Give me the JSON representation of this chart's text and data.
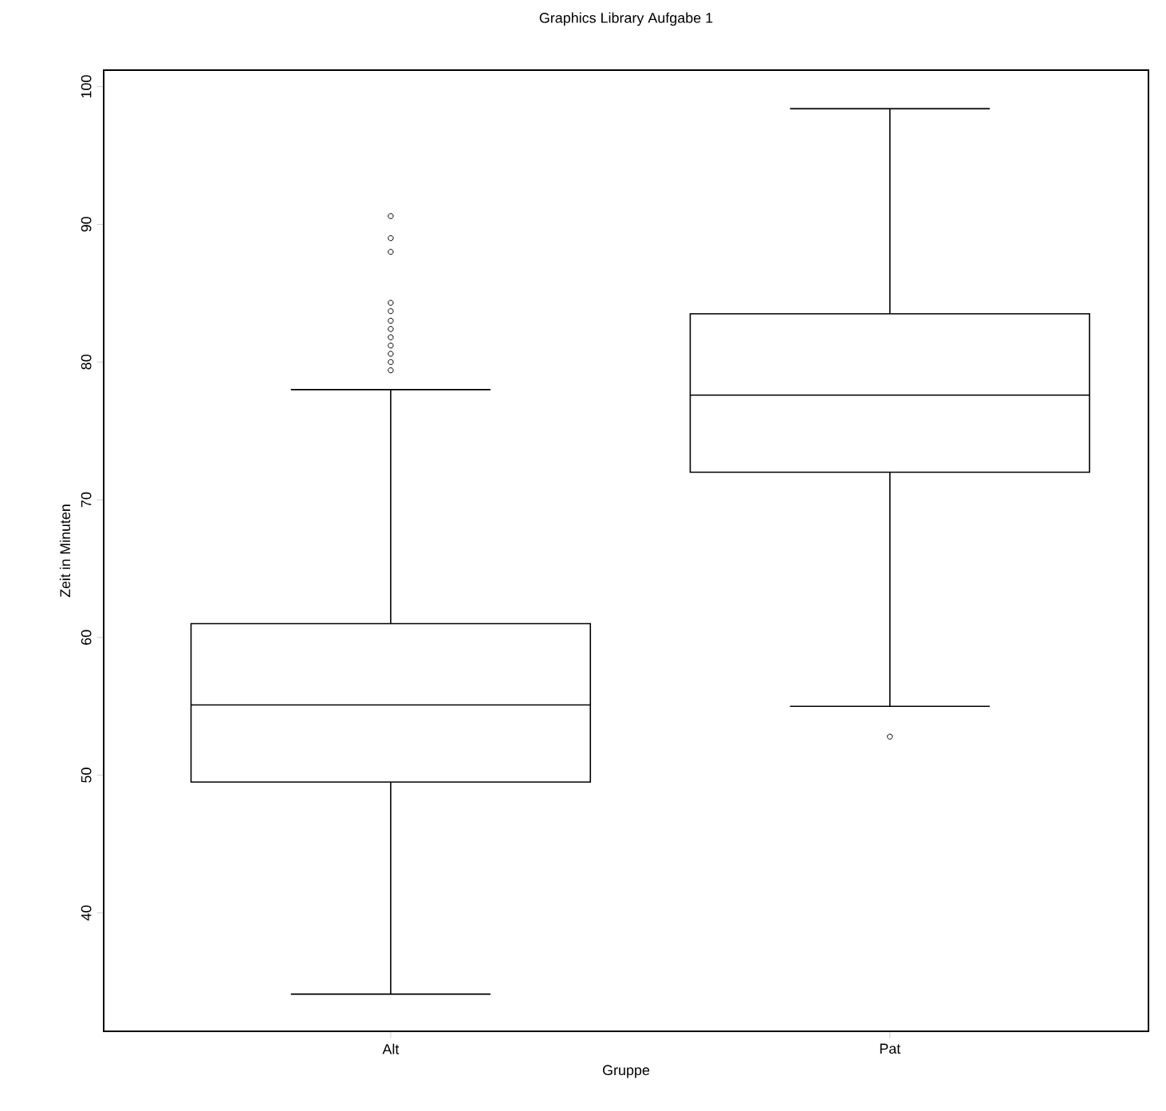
{
  "chart_data": {
    "type": "box",
    "title": "Graphics Library Aufgabe 1",
    "xlabel": "Gruppe",
    "ylabel": "Zeit in Minuten",
    "categories": [
      "Alt",
      "Pat"
    ],
    "boxes": [
      {
        "low": 34.1,
        "q1": 49.5,
        "median": 55.1,
        "q3": 61.0,
        "high": 78.0,
        "outliers": [
          90.6,
          89.0,
          88.0,
          84.3,
          83.7,
          83.0,
          82.4,
          81.8,
          81.2,
          80.6,
          80.0,
          79.4
        ]
      },
      {
        "low": 55.0,
        "q1": 72.0,
        "median": 77.6,
        "q3": 83.5,
        "high": 98.4,
        "outliers": [
          52.8
        ]
      }
    ],
    "ylim": [
      31.4,
      101.2
    ],
    "yticks": [
      40,
      50,
      60,
      70,
      80,
      90,
      100
    ]
  }
}
